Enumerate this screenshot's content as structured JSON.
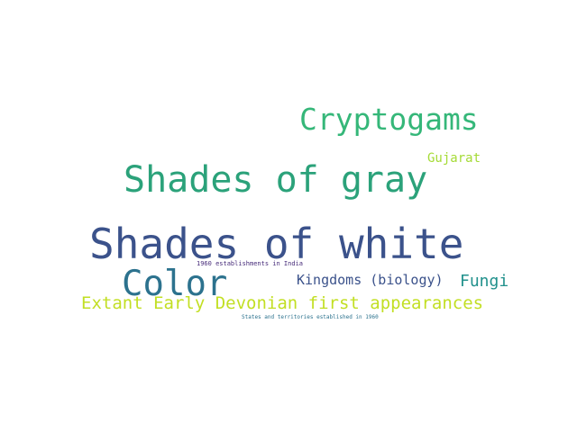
{
  "cloud": {
    "words": [
      {
        "text": "Shades of white",
        "color": "#3b528b"
      },
      {
        "text": "Shades of gray",
        "color": "#2ba27a"
      },
      {
        "text": "Cryptogams",
        "color": "#35b779"
      },
      {
        "text": "Color",
        "color": "#2c728e"
      },
      {
        "text": "Extant Early Devonian first appearances",
        "color": "#c2df23"
      },
      {
        "text": "Kingdoms (biology)",
        "color": "#3b528b"
      },
      {
        "text": "Fungi",
        "color": "#21918c"
      },
      {
        "text": "Gujarat",
        "color": "#a5db36"
      },
      {
        "text": "1960 establishments in India",
        "color": "#472c7a"
      },
      {
        "text": "States and territories established in 1960",
        "color": "#2c728e"
      }
    ]
  }
}
